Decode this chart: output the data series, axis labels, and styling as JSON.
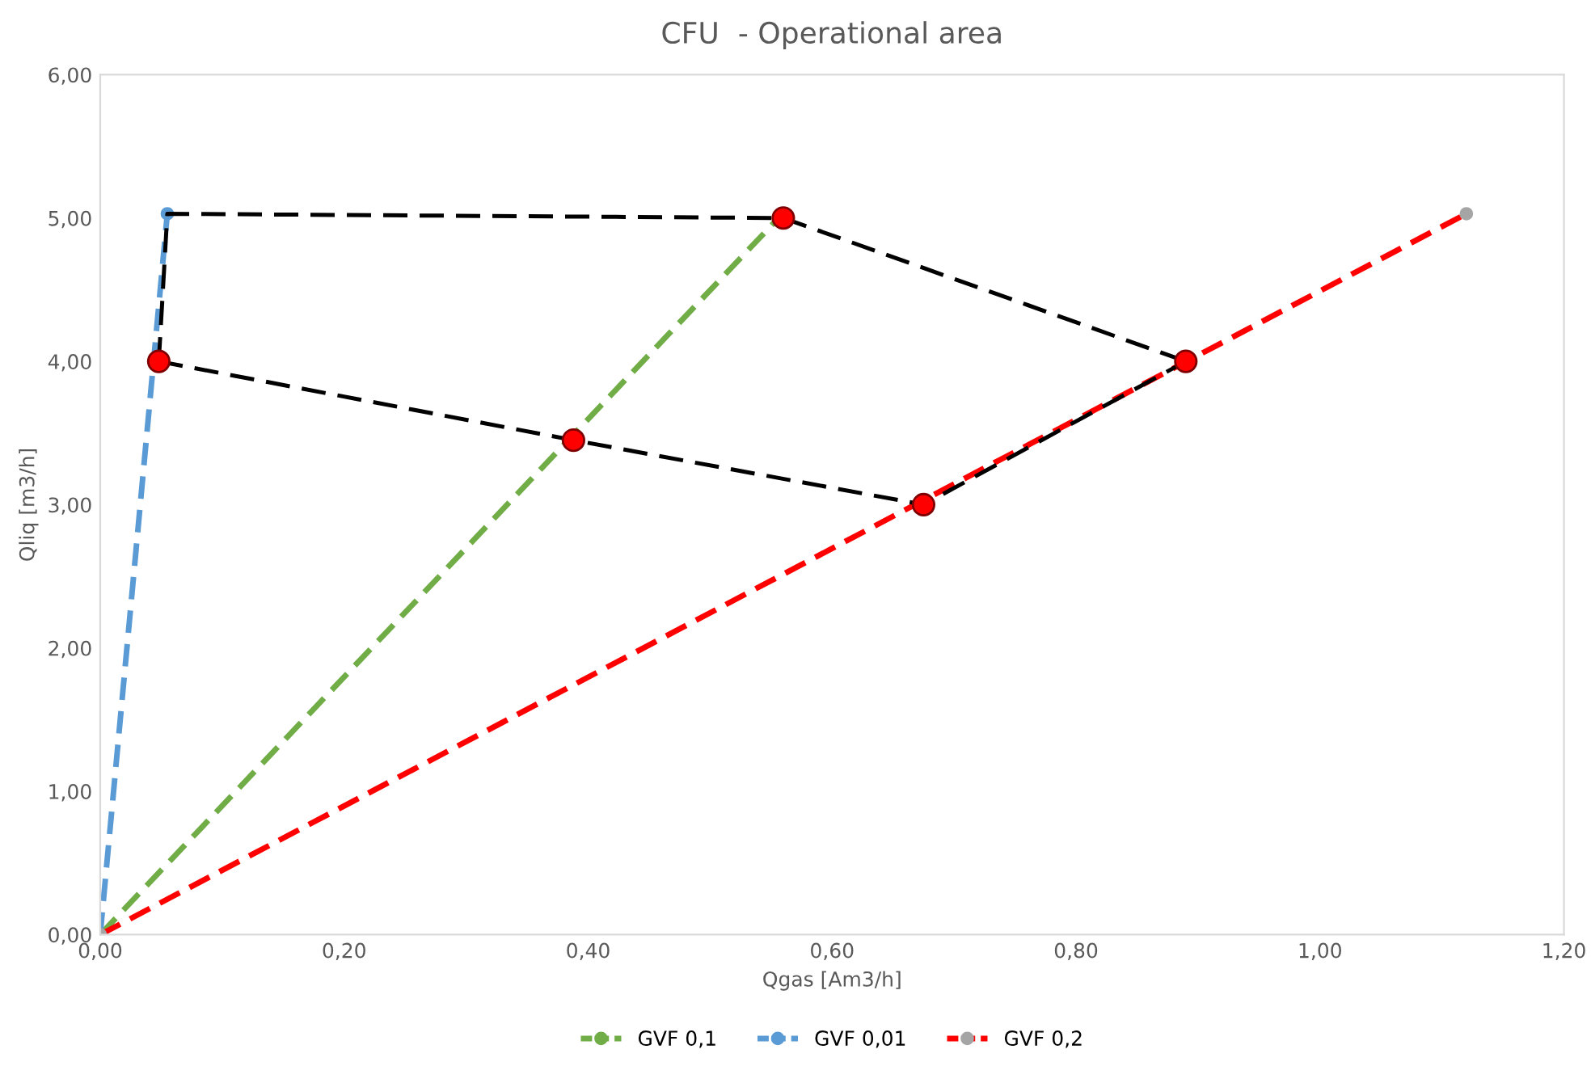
{
  "chart_data": {
    "type": "line",
    "title": "CFU  - Operational area",
    "xlabel": "Qgas [Am3/h]",
    "ylabel": "Qliq [m3/h]",
    "xlim": [
      0,
      1.2
    ],
    "ylim": [
      0,
      6
    ],
    "xticks": [
      {
        "value": 0,
        "label": "0,00"
      },
      {
        "value": 0.2,
        "label": "0,20"
      },
      {
        "value": 0.4,
        "label": "0,40"
      },
      {
        "value": 0.6,
        "label": "0,60"
      },
      {
        "value": 0.8,
        "label": "0,80"
      },
      {
        "value": 1.0,
        "label": "1,00"
      },
      {
        "value": 1.2,
        "label": "1,20"
      }
    ],
    "yticks": [
      {
        "value": 0,
        "label": "0,00"
      },
      {
        "value": 1,
        "label": "1,00"
      },
      {
        "value": 2,
        "label": "2,00"
      },
      {
        "value": 3,
        "label": "3,00"
      },
      {
        "value": 4,
        "label": "4,00"
      },
      {
        "value": 5,
        "label": "5,00"
      },
      {
        "value": 6,
        "label": "6,00"
      }
    ],
    "grid": false,
    "legend": "bottom",
    "series": [
      {
        "name": "GVF 0,1",
        "color": "#70ad47",
        "x": [
          0,
          0.556
        ],
        "values": [
          0,
          5.0
        ],
        "line_style": "dashed",
        "marker": "circle"
      },
      {
        "name": "GVF 0,01",
        "color": "#5b9bd5",
        "x": [
          0,
          0.055
        ],
        "values": [
          0,
          5.03
        ],
        "line_style": "dashed",
        "marker": "circle"
      },
      {
        "name": "GVF 0,2",
        "color": "#ff0000",
        "x": [
          0,
          1.12
        ],
        "values": [
          0,
          5.03
        ],
        "line_style": "dashed",
        "marker": "circle"
      },
      {
        "color": "#000000",
        "x": [
          0.048,
          0.055,
          0.56,
          0.89
        ],
        "values": [
          4.0,
          5.03,
          5.0,
          4.0
        ],
        "line_style": "dashed",
        "marker": "none"
      },
      {
        "color": "#000000",
        "x": [
          0.048,
          0.388,
          0.675,
          0.89
        ],
        "values": [
          4.0,
          3.45,
          3.0,
          4.0
        ],
        "line_style": "dashed",
        "marker": "none"
      },
      {
        "type": "scatter",
        "color": "#ff0000",
        "x": [
          0.048,
          0.56,
          0.89,
          0.675,
          0.388
        ],
        "values": [
          4.0,
          5.0,
          4.0,
          3.0,
          3.45
        ],
        "marker": "circle"
      }
    ]
  }
}
